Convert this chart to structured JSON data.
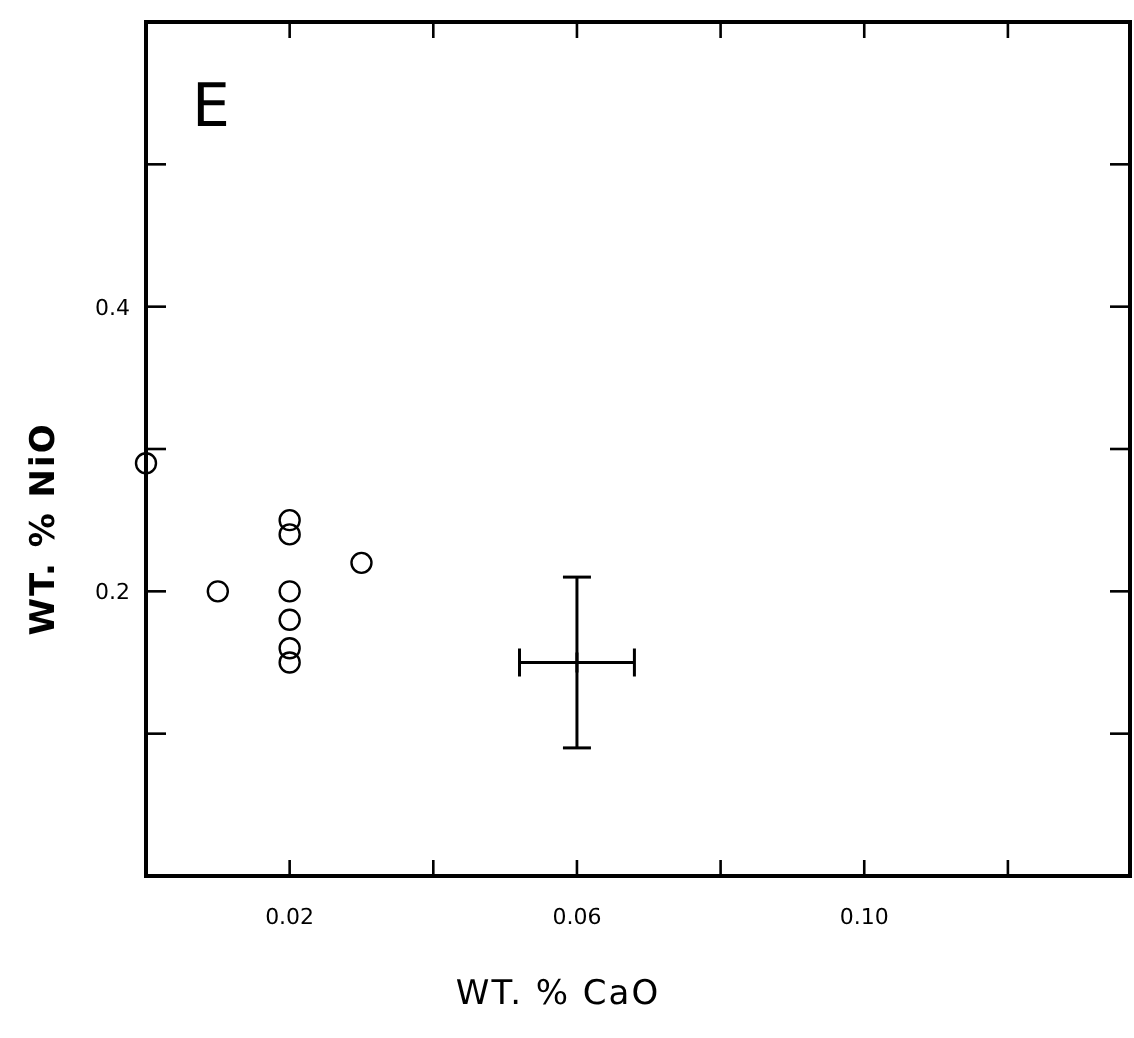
{
  "chart_data": {
    "type": "scatter",
    "xlabel": "WT. % CaO",
    "ylabel": "WT. % NiO",
    "annotations": [
      "E"
    ],
    "xlim": [
      0,
      0.137
    ],
    "ylim": [
      0,
      0.6
    ],
    "xticks": [
      {
        "value": 0.02,
        "label": "0.02"
      },
      {
        "value": 0.04,
        "label": null
      },
      {
        "value": 0.06,
        "label": "0.06"
      },
      {
        "value": 0.08,
        "label": null
      },
      {
        "value": 0.1,
        "label": "0.10"
      },
      {
        "value": 0.12,
        "label": null
      }
    ],
    "yticks": [
      {
        "value": 0.1,
        "label": null
      },
      {
        "value": 0.2,
        "label": "0.2"
      },
      {
        "value": 0.3,
        "label": null
      },
      {
        "value": 0.4,
        "label": "0.4"
      },
      {
        "value": 0.5,
        "label": null
      }
    ],
    "grid": false,
    "marker": "circle",
    "series": [
      {
        "color": "#000000",
        "x": [
          0.0,
          0.01,
          0.02,
          0.02,
          0.02,
          0.02,
          0.02,
          0.02,
          0.03
        ],
        "values": [
          0.29,
          0.2,
          0.25,
          0.24,
          0.2,
          0.18,
          0.16,
          0.15,
          0.22
        ]
      },
      {
        "color": "#000000",
        "marker": "cross",
        "x": [
          0.06
        ],
        "values": [
          0.15
        ],
        "errors": [
          0.06
        ],
        "xerrors": [
          0.008
        ]
      }
    ]
  }
}
